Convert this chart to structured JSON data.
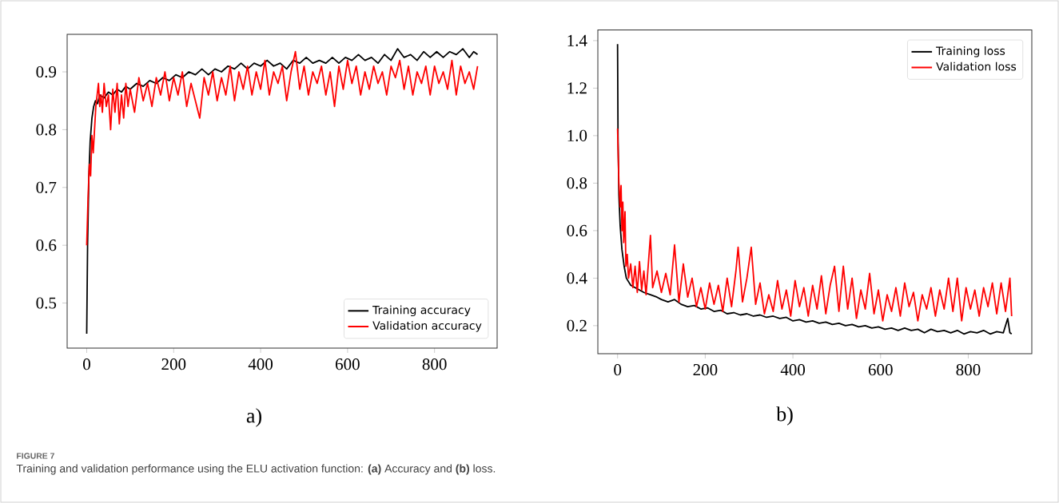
{
  "chart_data": [
    {
      "type": "line",
      "xlabel": "a)",
      "xlim": [
        -45,
        944
      ],
      "ylim": [
        0.422,
        0.965
      ],
      "xticks": [
        0,
        200,
        400,
        600,
        800
      ],
      "yticks": [
        0.5,
        0.6,
        0.7,
        0.8,
        0.9
      ],
      "legend": "bottom right",
      "grid": false,
      "annotations": [
        "FIGURE 7",
        "Training and validation performance using the ELU activation function: **(a)** Accuracy and **(b)** loss."
      ],
      "series": [
        {
          "name": "Training accuracy",
          "color": "#000000",
          "x": [
            0,
            2,
            5,
            8,
            12,
            16,
            20,
            25,
            30,
            40,
            50,
            60,
            70,
            80,
            90,
            100,
            115,
            130,
            145,
            160,
            175,
            190,
            205,
            220,
            235,
            250,
            265,
            280,
            295,
            310,
            325,
            340,
            355,
            370,
            385,
            400,
            415,
            430,
            445,
            460,
            475,
            490,
            505,
            520,
            535,
            550,
            565,
            580,
            595,
            610,
            625,
            640,
            655,
            670,
            685,
            700,
            715,
            730,
            745,
            760,
            775,
            790,
            805,
            820,
            835,
            850,
            865,
            880,
            890,
            899
          ],
          "values": [
            0.447,
            0.6,
            0.72,
            0.78,
            0.82,
            0.84,
            0.85,
            0.845,
            0.86,
            0.855,
            0.865,
            0.86,
            0.87,
            0.865,
            0.875,
            0.87,
            0.88,
            0.875,
            0.885,
            0.88,
            0.89,
            0.885,
            0.895,
            0.89,
            0.9,
            0.895,
            0.905,
            0.895,
            0.905,
            0.9,
            0.91,
            0.905,
            0.915,
            0.905,
            0.915,
            0.91,
            0.92,
            0.91,
            0.915,
            0.905,
            0.92,
            0.915,
            0.925,
            0.915,
            0.92,
            0.915,
            0.925,
            0.915,
            0.925,
            0.92,
            0.93,
            0.92,
            0.925,
            0.915,
            0.93,
            0.92,
            0.94,
            0.925,
            0.93,
            0.92,
            0.935,
            0.925,
            0.935,
            0.925,
            0.935,
            0.93,
            0.94,
            0.925,
            0.935,
            0.93
          ]
        },
        {
          "name": "Validation accuracy",
          "color": "#ff0000",
          "x": [
            0,
            3,
            6,
            9,
            12,
            15,
            18,
            21,
            24,
            27,
            30,
            33,
            36,
            40,
            45,
            50,
            55,
            60,
            65,
            70,
            75,
            80,
            85,
            90,
            95,
            100,
            110,
            120,
            130,
            140,
            150,
            160,
            170,
            180,
            190,
            200,
            210,
            220,
            230,
            240,
            250,
            260,
            270,
            280,
            290,
            300,
            310,
            320,
            330,
            340,
            350,
            360,
            370,
            380,
            390,
            400,
            410,
            420,
            430,
            440,
            450,
            460,
            470,
            480,
            490,
            500,
            510,
            520,
            530,
            540,
            550,
            560,
            570,
            580,
            590,
            600,
            610,
            620,
            630,
            640,
            650,
            660,
            670,
            680,
            690,
            700,
            710,
            720,
            730,
            740,
            750,
            760,
            770,
            780,
            790,
            800,
            810,
            820,
            830,
            840,
            850,
            860,
            870,
            880,
            890,
            899
          ],
          "values": [
            0.6,
            0.68,
            0.74,
            0.72,
            0.79,
            0.76,
            0.8,
            0.84,
            0.86,
            0.88,
            0.84,
            0.86,
            0.83,
            0.88,
            0.84,
            0.86,
            0.8,
            0.87,
            0.83,
            0.88,
            0.81,
            0.86,
            0.82,
            0.88,
            0.84,
            0.87,
            0.83,
            0.89,
            0.85,
            0.88,
            0.84,
            0.89,
            0.86,
            0.9,
            0.85,
            0.89,
            0.86,
            0.9,
            0.84,
            0.88,
            0.85,
            0.82,
            0.89,
            0.86,
            0.9,
            0.85,
            0.89,
            0.86,
            0.91,
            0.85,
            0.9,
            0.87,
            0.91,
            0.86,
            0.9,
            0.87,
            0.92,
            0.86,
            0.9,
            0.88,
            0.91,
            0.85,
            0.9,
            0.935,
            0.87,
            0.91,
            0.86,
            0.9,
            0.88,
            0.91,
            0.86,
            0.9,
            0.84,
            0.91,
            0.87,
            0.92,
            0.88,
            0.91,
            0.86,
            0.9,
            0.87,
            0.91,
            0.88,
            0.9,
            0.86,
            0.91,
            0.89,
            0.92,
            0.87,
            0.91,
            0.86,
            0.9,
            0.88,
            0.91,
            0.86,
            0.91,
            0.88,
            0.9,
            0.87,
            0.92,
            0.86,
            0.91,
            0.88,
            0.9,
            0.87,
            0.91
          ]
        }
      ]
    },
    {
      "type": "line",
      "xlabel": "b)",
      "xlim": [
        -45,
        945
      ],
      "ylim": [
        0.082,
        1.445
      ],
      "xticks": [
        0,
        200,
        400,
        600,
        800
      ],
      "yticks": [
        {
          "value": 0.2,
          "label": "0.2"
        },
        {
          "value": 0.4,
          "label": "0.4"
        },
        {
          "value": 0.6,
          "label": "0.6"
        },
        {
          "value": 0.8,
          "label": "0.8"
        },
        {
          "value": 1.0,
          "label": "1.0"
        },
        {
          "value": 1.2,
          "label": "1.2"
        },
        {
          "value": 1.4,
          "label": "1.4"
        }
      ],
      "legend": "top right",
      "grid": false,
      "series": [
        {
          "name": "Training loss",
          "color": "#000000",
          "x": [
            0,
            1,
            3,
            6,
            10,
            15,
            20,
            30,
            40,
            50,
            60,
            75,
            90,
            100,
            115,
            130,
            145,
            160,
            175,
            190,
            205,
            220,
            235,
            250,
            265,
            280,
            295,
            310,
            325,
            340,
            355,
            370,
            385,
            400,
            415,
            430,
            445,
            460,
            475,
            490,
            505,
            520,
            535,
            550,
            565,
            580,
            595,
            610,
            625,
            640,
            655,
            670,
            685,
            700,
            715,
            730,
            745,
            760,
            775,
            790,
            805,
            820,
            835,
            850,
            865,
            880,
            890,
            895,
            899
          ],
          "values": [
            1.385,
            1.0,
            0.75,
            0.62,
            0.52,
            0.45,
            0.4,
            0.37,
            0.36,
            0.35,
            0.34,
            0.33,
            0.32,
            0.31,
            0.3,
            0.31,
            0.29,
            0.28,
            0.285,
            0.27,
            0.275,
            0.26,
            0.265,
            0.25,
            0.255,
            0.245,
            0.25,
            0.24,
            0.245,
            0.235,
            0.24,
            0.23,
            0.235,
            0.22,
            0.225,
            0.215,
            0.22,
            0.21,
            0.215,
            0.205,
            0.21,
            0.2,
            0.205,
            0.195,
            0.2,
            0.19,
            0.195,
            0.185,
            0.19,
            0.18,
            0.19,
            0.18,
            0.185,
            0.17,
            0.185,
            0.175,
            0.18,
            0.17,
            0.18,
            0.165,
            0.175,
            0.17,
            0.18,
            0.165,
            0.175,
            0.17,
            0.23,
            0.17,
            0.165
          ]
        },
        {
          "name": "Validation loss",
          "color": "#ff0000",
          "x": [
            0,
            3,
            6,
            8,
            10,
            12,
            14,
            17,
            19,
            22,
            25,
            30,
            35,
            40,
            45,
            50,
            55,
            60,
            65,
            75,
            80,
            90,
            100,
            110,
            120,
            130,
            140,
            150,
            160,
            170,
            180,
            190,
            200,
            210,
            220,
            230,
            240,
            250,
            260,
            270,
            275,
            285,
            295,
            305,
            315,
            325,
            335,
            345,
            355,
            365,
            375,
            385,
            395,
            405,
            415,
            425,
            435,
            445,
            455,
            465,
            475,
            485,
            495,
            505,
            515,
            525,
            535,
            545,
            555,
            565,
            575,
            585,
            595,
            605,
            615,
            625,
            635,
            645,
            655,
            665,
            675,
            685,
            695,
            705,
            715,
            725,
            735,
            745,
            755,
            765,
            775,
            785,
            795,
            805,
            815,
            825,
            835,
            845,
            855,
            865,
            875,
            885,
            895,
            899
          ],
          "values": [
            1.03,
            0.8,
            0.7,
            0.79,
            0.6,
            0.72,
            0.55,
            0.68,
            0.45,
            0.5,
            0.4,
            0.46,
            0.36,
            0.45,
            0.34,
            0.47,
            0.35,
            0.43,
            0.33,
            0.58,
            0.36,
            0.43,
            0.34,
            0.42,
            0.33,
            0.54,
            0.3,
            0.46,
            0.32,
            0.4,
            0.28,
            0.36,
            0.27,
            0.38,
            0.29,
            0.37,
            0.26,
            0.4,
            0.28,
            0.43,
            0.53,
            0.3,
            0.4,
            0.53,
            0.29,
            0.38,
            0.25,
            0.33,
            0.26,
            0.39,
            0.27,
            0.35,
            0.24,
            0.39,
            0.28,
            0.36,
            0.24,
            0.37,
            0.27,
            0.41,
            0.25,
            0.37,
            0.45,
            0.26,
            0.45,
            0.27,
            0.4,
            0.23,
            0.35,
            0.27,
            0.42,
            0.25,
            0.35,
            0.22,
            0.33,
            0.26,
            0.36,
            0.24,
            0.38,
            0.28,
            0.34,
            0.22,
            0.33,
            0.27,
            0.36,
            0.24,
            0.35,
            0.27,
            0.4,
            0.26,
            0.4,
            0.22,
            0.36,
            0.27,
            0.35,
            0.24,
            0.36,
            0.28,
            0.38,
            0.25,
            0.38,
            0.26,
            0.4,
            0.24
          ]
        }
      ]
    }
  ]
}
